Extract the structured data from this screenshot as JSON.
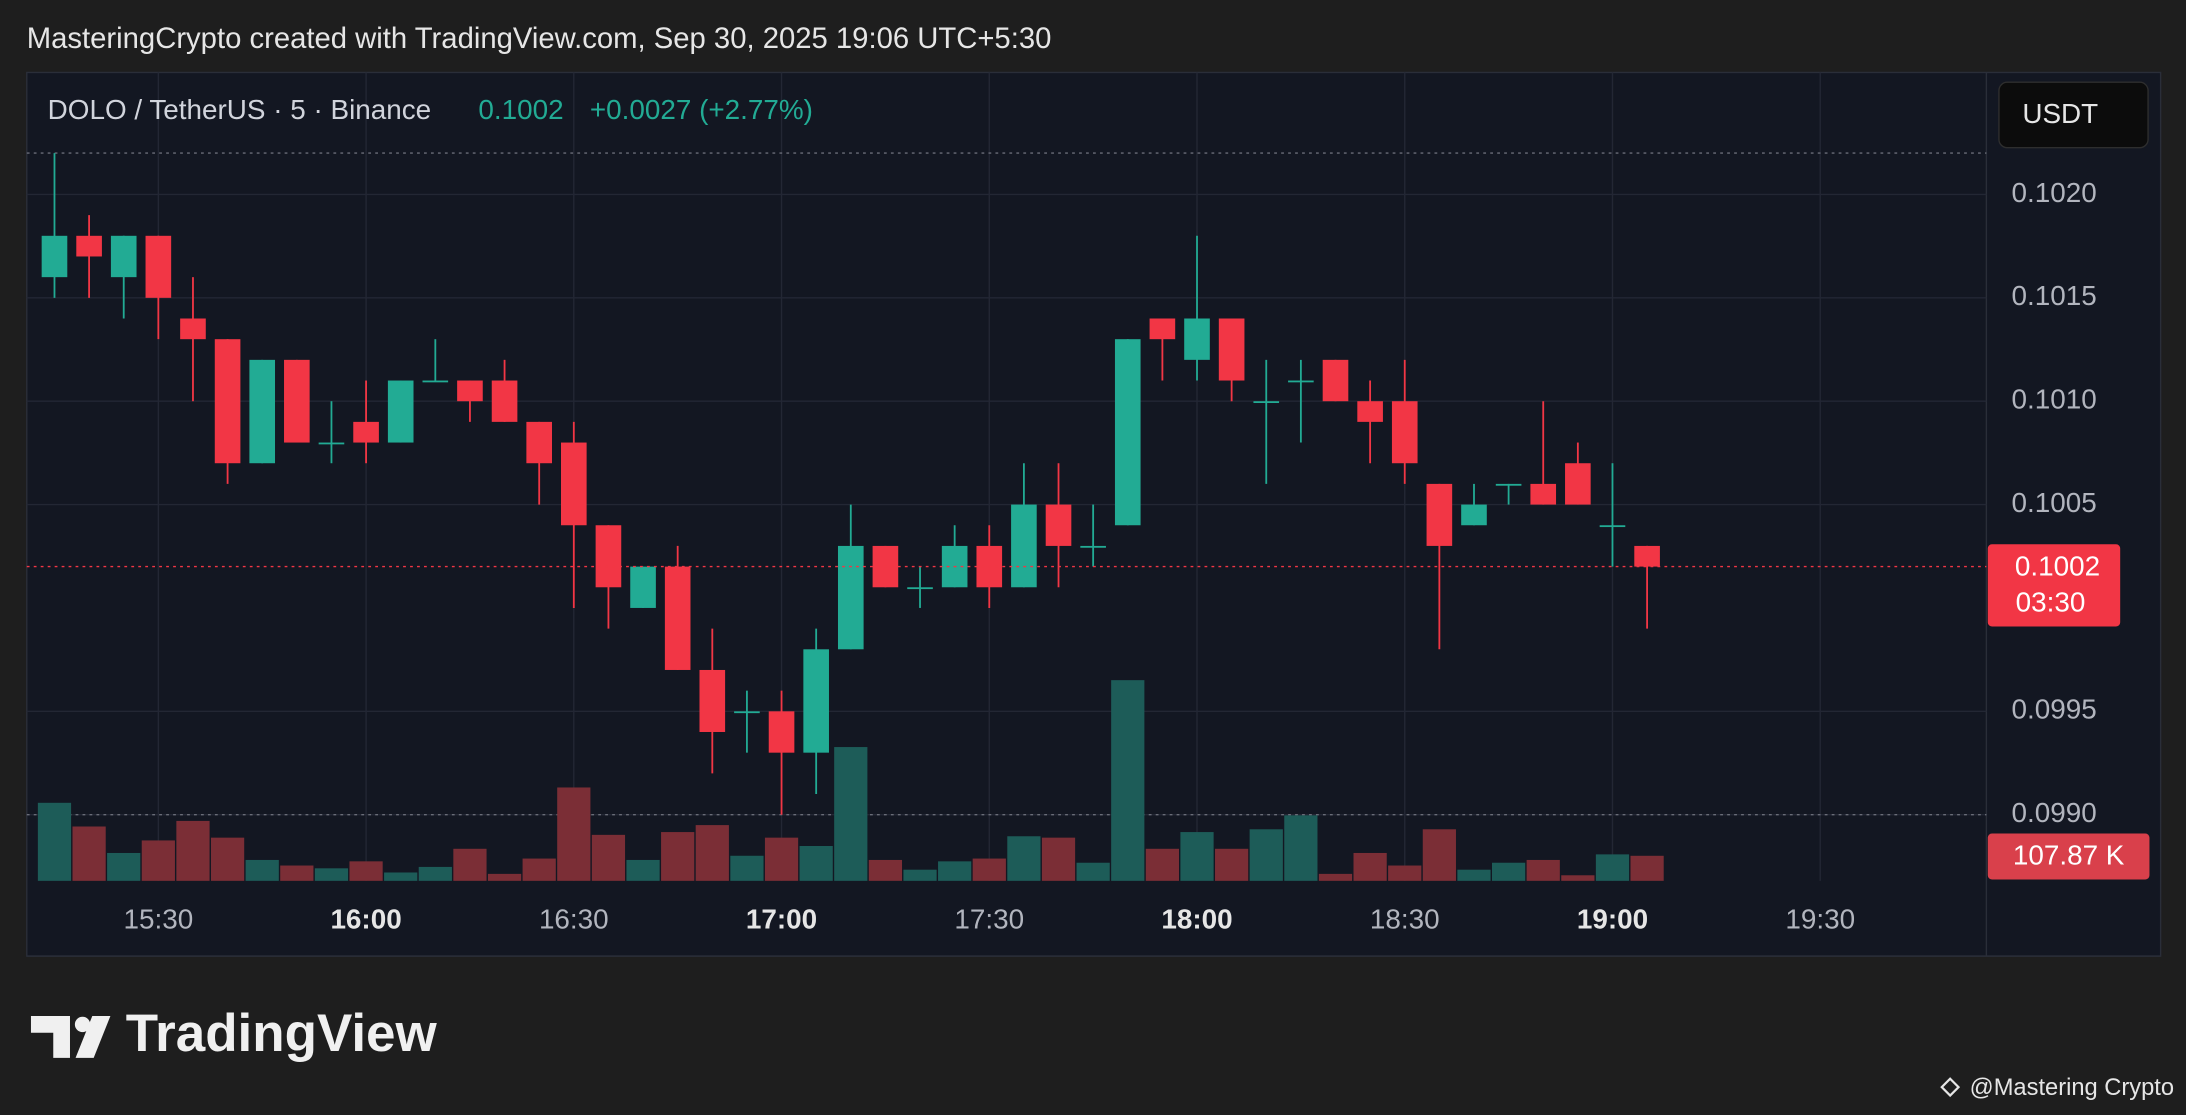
{
  "header": {
    "caption": "MasteringCrypto created with TradingView.com, Sep 30, 2025 19:06 UTC+5:30"
  },
  "footer": {
    "brand": "TradingView",
    "credit": "@Mastering Crypto"
  },
  "chart_data": {
    "type": "candlestick",
    "legend": {
      "symbol": "DOLO / TetherUS · 5 · Binance",
      "price": "0.1002",
      "change": "+0.0027 (+2.77%)"
    },
    "currency_button": "USDT",
    "up_color": "#22ab94",
    "down_color": "#f23645",
    "up_volume_color": "#1d5c58",
    "down_volume_color": "#7b2e36",
    "grid": true,
    "x": [
      915,
      920,
      925,
      930,
      935,
      940,
      945,
      950,
      955,
      960,
      965,
      970,
      975,
      980,
      985,
      990,
      995,
      1000,
      1005,
      1010,
      1015,
      1020,
      1025,
      1030,
      1035,
      1040,
      1045,
      1050,
      1055,
      1060,
      1065,
      1070,
      1075,
      1080,
      1085,
      1090,
      1095,
      1100,
      1105,
      1110,
      1115,
      1120,
      1125,
      1130,
      1135,
      1140,
      1145
    ],
    "open": [
      0.1016,
      0.1018,
      0.1016,
      0.1018,
      0.1014,
      0.1013,
      0.1007,
      0.1012,
      0.1008,
      0.1009,
      0.1008,
      0.1011,
      0.1011,
      0.1011,
      0.1009,
      0.1008,
      0.1004,
      0.1,
      0.1002,
      0.0997,
      0.0995,
      0.0995,
      0.0993,
      0.0998,
      0.1003,
      0.1001,
      0.1001,
      0.1003,
      0.1001,
      0.1005,
      0.1003,
      0.1004,
      0.1014,
      0.1012,
      0.1014,
      0.101,
      0.1011,
      0.1012,
      0.101,
      0.101,
      0.1006,
      0.1004,
      0.1006,
      0.1006,
      0.1007,
      0.1004,
      0.1003
    ],
    "high": [
      0.1022,
      0.1019,
      0.1018,
      0.1018,
      0.1016,
      0.1013,
      0.1012,
      0.1012,
      0.101,
      0.1011,
      0.1011,
      0.1013,
      0.1011,
      0.1012,
      0.1009,
      0.1009,
      0.1004,
      0.1002,
      0.1003,
      0.0999,
      0.0996,
      0.0996,
      0.0999,
      0.1005,
      0.1003,
      0.1002,
      0.1004,
      0.1004,
      0.1007,
      0.1007,
      0.1005,
      0.1013,
      0.1014,
      0.1018,
      0.1014,
      0.1012,
      0.1012,
      0.1012,
      0.1011,
      0.1012,
      0.1006,
      0.1006,
      0.1006,
      0.101,
      0.1008,
      0.1007,
      0.1003
    ],
    "low": [
      0.1015,
      0.1015,
      0.1014,
      0.1013,
      0.101,
      0.1006,
      0.1007,
      0.1008,
      0.1007,
      0.1007,
      0.1008,
      0.1011,
      0.1009,
      0.1009,
      0.1005,
      0.1,
      0.0999,
      0.1,
      0.0997,
      0.0992,
      0.0993,
      0.099,
      0.0991,
      0.0998,
      0.1001,
      0.1,
      0.1001,
      0.1,
      0.1001,
      0.1001,
      0.1002,
      0.1004,
      0.1011,
      0.1011,
      0.101,
      0.1006,
      0.1008,
      0.101,
      0.1007,
      0.1006,
      0.0998,
      0.1004,
      0.1005,
      0.1005,
      0.1005,
      0.1002,
      0.0999
    ],
    "close": [
      0.1018,
      0.1017,
      0.1018,
      0.1015,
      0.1013,
      0.1007,
      0.1012,
      0.1008,
      0.1008,
      0.1008,
      0.1011,
      0.1011,
      0.101,
      0.1009,
      0.1007,
      0.1004,
      0.1001,
      0.1002,
      0.0997,
      0.0994,
      0.0995,
      0.0993,
      0.0998,
      0.1003,
      0.1001,
      0.1001,
      0.1003,
      0.1001,
      0.1005,
      0.1003,
      0.1003,
      0.1013,
      0.1013,
      0.1014,
      0.1011,
      0.101,
      0.1011,
      0.101,
      0.1009,
      0.1007,
      0.1003,
      0.1005,
      0.1006,
      0.1005,
      0.1005,
      0.1004,
      0.1002
    ],
    "volume": {
      "axis": "y2",
      "values": [
        336000,
        234000,
        120000,
        174000,
        258000,
        186000,
        90000,
        66000,
        54000,
        84000,
        36000,
        60000,
        138000,
        30000,
        96000,
        402000,
        198000,
        90000,
        210000,
        240000,
        108000,
        186000,
        150000,
        576000,
        90000,
        48000,
        84000,
        96000,
        192000,
        186000,
        78000,
        864000,
        138000,
        210000,
        138000,
        222000,
        282000,
        30000,
        120000,
        66000,
        222000,
        48000,
        78000,
        90000,
        24000,
        114000,
        107870
      ]
    },
    "price_tag": {
      "value": 0.1002,
      "label": "0.1002",
      "countdown": "03:30"
    },
    "volume_tag": {
      "value": 107870,
      "label": "107.87 K"
    },
    "xlim": [
      911,
      1194
    ],
    "xticks": [
      {
        "value": 930,
        "label": "15:30"
      },
      {
        "value": 960,
        "label": "16:00"
      },
      {
        "value": 990,
        "label": "16:30"
      },
      {
        "value": 1020,
        "label": "17:00"
      },
      {
        "value": 1050,
        "label": "17:30"
      },
      {
        "value": 1080,
        "label": "18:00"
      },
      {
        "value": 1110,
        "label": "18:30"
      },
      {
        "value": 1140,
        "label": "19:00"
      },
      {
        "value": 1170,
        "label": "19:30"
      }
    ],
    "ylim": [
      0.09868,
      0.10259
    ],
    "yticks": [
      {
        "value": 0.099,
        "label": "0.0990"
      },
      0.0995,
      0.1005,
      {
        "value": 0.101,
        "label": "0.1010"
      },
      0.1015,
      {
        "value": 0.102,
        "label": "0.1020"
      }
    ],
    "y2lim": [
      0,
      3480000
    ]
  }
}
